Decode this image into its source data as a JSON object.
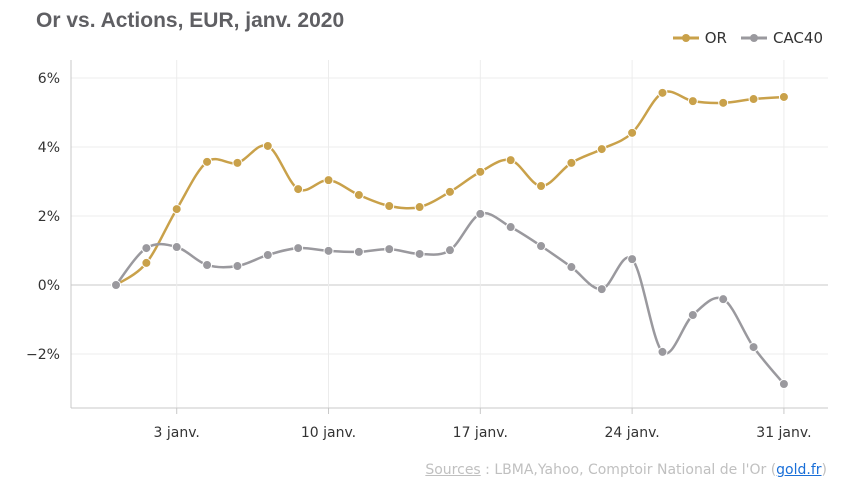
{
  "chart_data": {
    "type": "line",
    "title": "Or vs. Actions, EUR, janv. 2020",
    "xlabel": "",
    "ylabel": "",
    "x_tick_labels": [
      "3 janv.",
      "10 janv.",
      "17 janv.",
      "24 janv.",
      "31 janv."
    ],
    "x_tick_indices": [
      2,
      7,
      12,
      17,
      22
    ],
    "y_ticks": [
      -2,
      0,
      2,
      4,
      6
    ],
    "y_tick_labels": [
      "−2%",
      "0%",
      "2%",
      "4%",
      "6%"
    ],
    "ylim": [
      -3.5,
      6.2
    ],
    "grid": true,
    "legend": "top-right",
    "series": [
      {
        "name": "OR",
        "color": "#c9a14a",
        "values": [
          0,
          0.64,
          2.2,
          3.57,
          3.54,
          4.03,
          2.78,
          3.04,
          2.61,
          2.29,
          2.26,
          2.7,
          3.28,
          3.62,
          2.87,
          3.54,
          3.94,
          4.41,
          5.57,
          5.33,
          5.28,
          5.39,
          5.45
        ]
      },
      {
        "name": "CAC40",
        "color": "#9a999e",
        "values": [
          0,
          1.07,
          1.1,
          0.58,
          0.55,
          0.87,
          1.07,
          0.99,
          0.96,
          1.04,
          0.9,
          1.01,
          2.06,
          1.68,
          1.13,
          0.52,
          -0.12,
          0.75,
          -1.94,
          -0.87,
          -0.41,
          -1.8,
          -2.87
        ]
      }
    ]
  },
  "source": {
    "label": "Sources",
    "text": " : LBMA,Yahoo, Comptoir National de l'Or (",
    "link": "gold.fr",
    "close": ")"
  }
}
